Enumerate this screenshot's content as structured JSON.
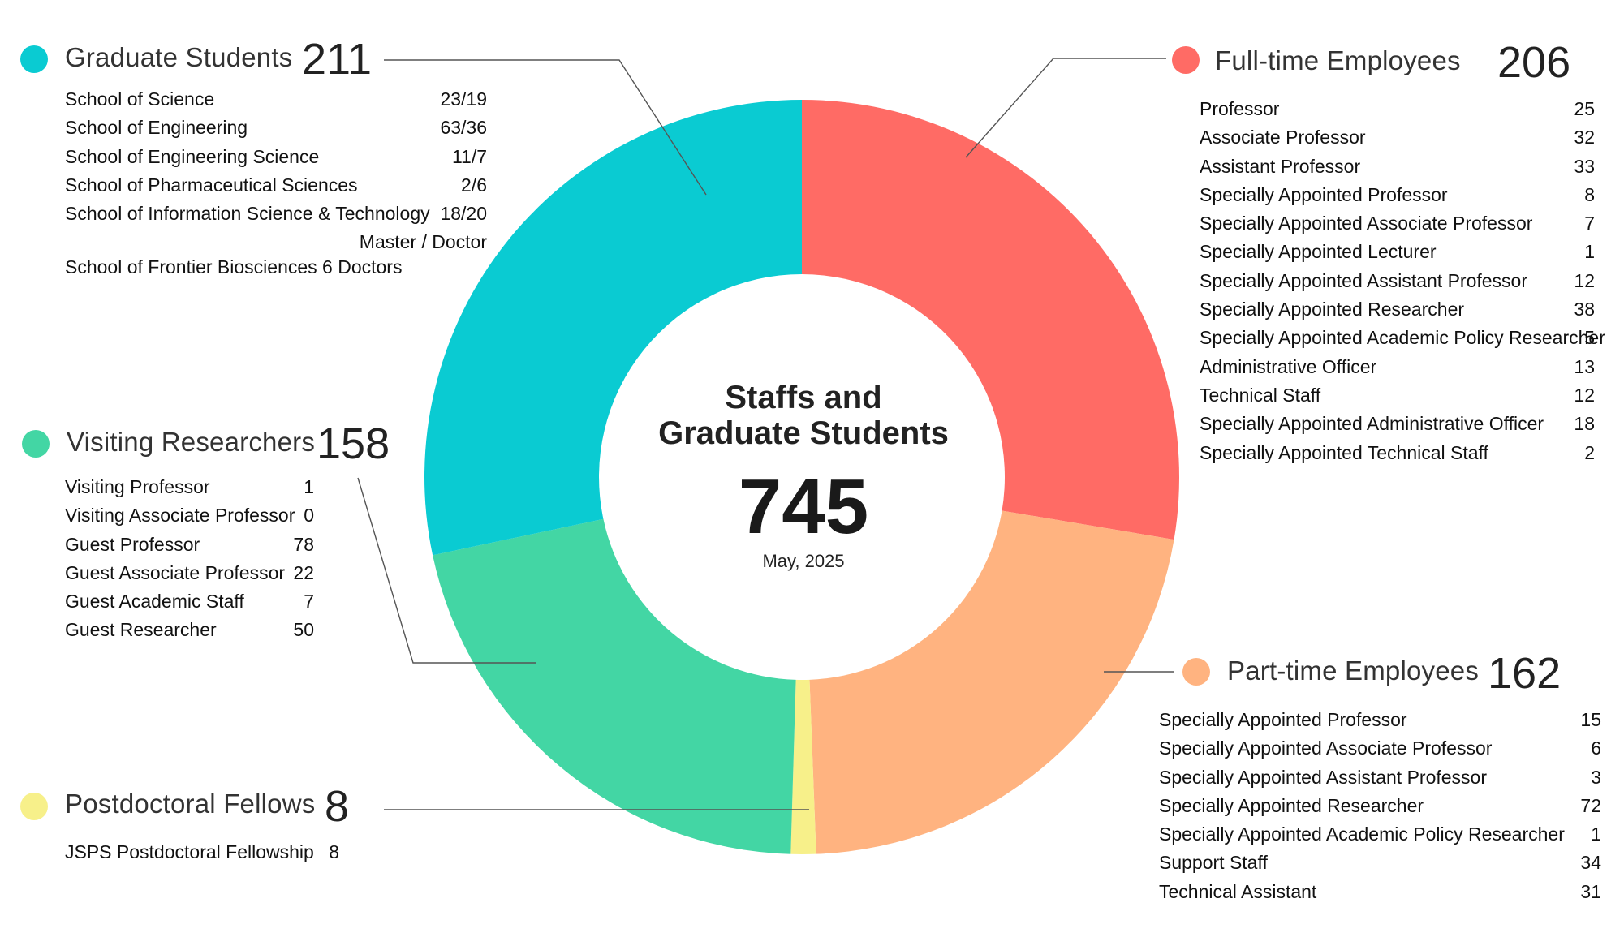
{
  "chart_data": {
    "type": "pie",
    "variant": "donut",
    "center": {
      "title_line1": "Staffs and",
      "title_line2": "Graduate Students",
      "total": "745",
      "date": "May, 2025"
    },
    "slices": [
      {
        "name": "Full-time Employees",
        "value": 206,
        "color": "#ff6b65"
      },
      {
        "name": "Part-time Employees",
        "value": 162,
        "color": "#ffb380"
      },
      {
        "name": "Postdoctoral Fellows",
        "value": 8,
        "color": "#f7f08a"
      },
      {
        "name": "Visiting Researchers",
        "value": 158,
        "color": "#43d6a4"
      },
      {
        "name": "Graduate Students",
        "value": 211,
        "color": "#0acbd2"
      }
    ],
    "groups": {
      "graduate": {
        "title": "Graduate Students",
        "total": "211",
        "rows": [
          {
            "label": "School of Science",
            "value": "23/19"
          },
          {
            "label": "School of Engineering",
            "value": "63/36"
          },
          {
            "label": "School of Engineering Science",
            "value": "11/7"
          },
          {
            "label": "School of Pharmaceutical Sciences",
            "value": "2/6"
          },
          {
            "label": "School of Information Science & Technology",
            "value": "18/20"
          },
          {
            "label": "",
            "value": "Master / Doctor"
          }
        ],
        "note": "School of Frontier Biosciences 6 Doctors"
      },
      "visiting": {
        "title": "Visiting Researchers",
        "total": "158",
        "rows": [
          {
            "label": "Visiting Professor",
            "value": "1"
          },
          {
            "label": "Visiting Associate Professor",
            "value": "0"
          },
          {
            "label": "Guest Professor",
            "value": "78"
          },
          {
            "label": "Guest Associate Professor",
            "value": "22"
          },
          {
            "label": "Guest Academic Staff",
            "value": "7"
          },
          {
            "label": "Guest Researcher",
            "value": "50"
          }
        ]
      },
      "postdoc": {
        "title": "Postdoctoral Fellows",
        "total": "8",
        "rows": [
          {
            "label": "JSPS Postdoctoral Fellowship",
            "value": "8"
          }
        ]
      },
      "fulltime": {
        "title": "Full-time Employees",
        "total": "206",
        "rows": [
          {
            "label": "Professor",
            "value": "25"
          },
          {
            "label": "Associate Professor",
            "value": "32"
          },
          {
            "label": "Assistant Professor",
            "value": "33"
          },
          {
            "label": "Specially Appointed Professor",
            "value": "8"
          },
          {
            "label": "Specially Appointed Associate Professor",
            "value": "7"
          },
          {
            "label": "Specially Appointed Lecturer",
            "value": "1"
          },
          {
            "label": "Specially Appointed Assistant Professor",
            "value": "12"
          },
          {
            "label": "Specially Appointed Researcher",
            "value": "38"
          },
          {
            "label": "Specially Appointed Academic Policy Researcher",
            "value": "5"
          },
          {
            "label": "Administrative Officer",
            "value": "13"
          },
          {
            "label": "Technical Staff",
            "value": "12"
          },
          {
            "label": "Specially Appointed Administrative Officer",
            "value": "18"
          },
          {
            "label": "Specially Appointed Technical Staff",
            "value": "2"
          }
        ]
      },
      "parttime": {
        "title": "Part-time Employees",
        "total": "162",
        "rows": [
          {
            "label": "Specially Appointed Professor",
            "value": "15"
          },
          {
            "label": "Specially Appointed Associate Professor",
            "value": "6"
          },
          {
            "label": "Specially Appointed Assistant Professor",
            "value": "3"
          },
          {
            "label": "Specially Appointed Researcher",
            "value": "72"
          },
          {
            "label": "Specially Appointed Academic Policy Researcher",
            "value": "1"
          },
          {
            "label": "Support Staff",
            "value": "34"
          },
          {
            "label": "Technical Assistant",
            "value": "31"
          }
        ]
      }
    }
  }
}
